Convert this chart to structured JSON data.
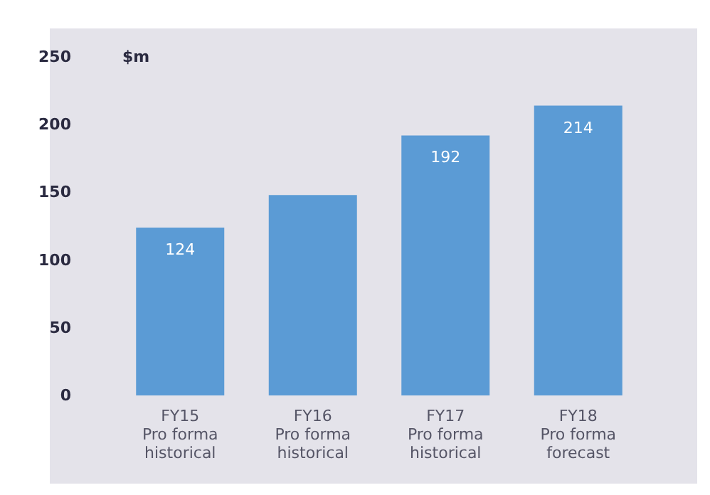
{
  "chart_data": {
    "type": "bar",
    "ylabel": "$m",
    "categories": [
      "FY15\nPro forma\nhistorical",
      "FY16\nPro forma\nhistorical",
      "FY17\nPro forma\nhistorical",
      "FY18\nPro forma\nforecast"
    ],
    "values": [
      124,
      148,
      192,
      214
    ],
    "value_labels": [
      "124",
      null,
      "192",
      "214"
    ],
    "color": "#5b9bd5",
    "ylim": [
      0,
      250
    ],
    "yticks": [
      0,
      50,
      100,
      150,
      200,
      250
    ]
  }
}
